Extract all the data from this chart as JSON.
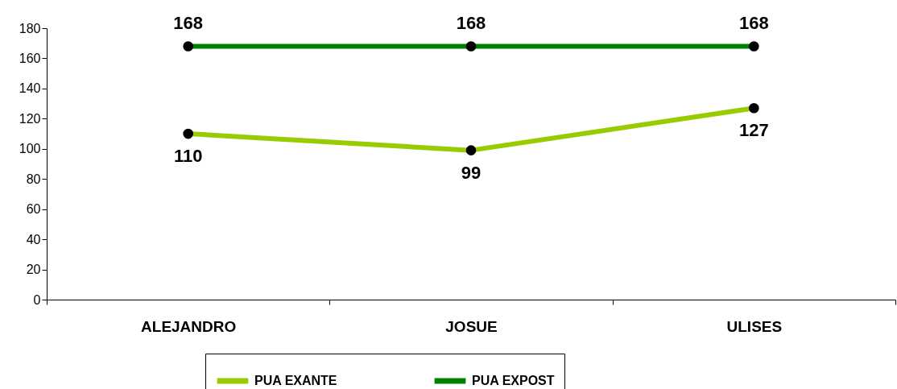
{
  "chart_data": {
    "type": "line",
    "categories": [
      "ALEJANDRO",
      "JOSUE",
      "ULISES"
    ],
    "series": [
      {
        "name": "PUA EXANTE",
        "color": "#99cc00",
        "values": [
          110,
          99,
          127
        ]
      },
      {
        "name": "PUA EXPOST",
        "color": "#008000",
        "values": [
          168,
          168,
          168
        ]
      }
    ],
    "ylim": [
      0,
      180
    ],
    "yticks": [
      0,
      20,
      40,
      60,
      80,
      100,
      120,
      140,
      160,
      180
    ],
    "grid": false,
    "legend": "bottom",
    "marker": "circle",
    "data_labels": true
  }
}
